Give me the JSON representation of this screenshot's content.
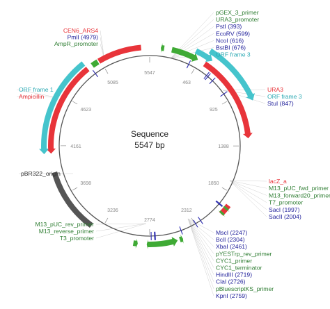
{
  "plasmid": {
    "name": "Sequence",
    "length_label": "5547 bp",
    "length": 5547
  },
  "ticks": [
    {
      "label": "5547",
      "pos": 0
    },
    {
      "label": "463",
      "pos": 463
    },
    {
      "label": "925",
      "pos": 925
    },
    {
      "label": "1388",
      "pos": 1388
    },
    {
      "label": "1850",
      "pos": 1850
    },
    {
      "label": "2312",
      "pos": 2312
    },
    {
      "label": "2774",
      "pos": 2774
    },
    {
      "label": "3236",
      "pos": 3236
    },
    {
      "label": "3698",
      "pos": 3698
    },
    {
      "label": "4161",
      "pos": 4161
    },
    {
      "label": "4623",
      "pos": 4623
    },
    {
      "label": "5085",
      "pos": 5085
    }
  ],
  "features": [
    {
      "name": "AmpR_promoter",
      "type": "promoter",
      "color": "#3faa35",
      "start": 5000,
      "end": 5060,
      "ring": 0,
      "arrow": "none"
    },
    {
      "name": "CEN6_ARS4",
      "type": "rep_origin",
      "color": "#e8343a",
      "start": 5070,
      "end": 5470,
      "ring": 0,
      "arrow": "none"
    },
    {
      "name": "URA3_promoter",
      "type": "promoter",
      "color": "#3faa35",
      "start": 200,
      "end": 450,
      "ring": 0,
      "arrow": "fwd"
    },
    {
      "name": "pGEX_3_primer",
      "type": "primer",
      "color": "#3faa35",
      "start": 100,
      "end": 130,
      "ring": 0,
      "arrow": "rev"
    },
    {
      "name": "URA3",
      "type": "gene",
      "color": "#e8343a",
      "start": 520,
      "end": 1320,
      "ring": 0,
      "arrow": "fwd"
    },
    {
      "name": "ORF frame 3",
      "type": "orf",
      "color": "#45c4cc",
      "start": 400,
      "end": 560,
      "ring": 1,
      "arrow": "fwd"
    },
    {
      "name": "ORF frame 3",
      "type": "orf",
      "color": "#45c4cc",
      "start": 500,
      "end": 1020,
      "ring": 2,
      "arrow": "fwd"
    },
    {
      "name": "lacZ_a",
      "type": "gene",
      "color": "#e8343a",
      "start": 1960,
      "end": 2060,
      "ring": 0,
      "arrow": "none"
    },
    {
      "name": "M13_pUC_fwd_primer",
      "type": "primer",
      "color": "#3faa35",
      "start": 1985,
      "end": 2005,
      "ring": 0,
      "arrow": "fwd"
    },
    {
      "name": "T7_promoter",
      "type": "promoter",
      "color": "#3faa35",
      "start": 2040,
      "end": 2060,
      "ring": 0,
      "arrow": "fwd"
    },
    {
      "name": "M13_pUC_rev_primer",
      "type": "primer",
      "color": "#3faa35",
      "start": 2880,
      "end": 2920,
      "ring": 0,
      "arrow": "rev"
    },
    {
      "name": "pYESTrp_rev_primer",
      "type": "primer",
      "color": "#3faa35",
      "start": 2470,
      "end": 2500,
      "ring": 0,
      "arrow": "rev"
    },
    {
      "name": "CYC1_terminator",
      "type": "terminator",
      "color": "#3faa35",
      "start": 2520,
      "end": 2780,
      "ring": 0,
      "arrow": "rev"
    },
    {
      "name": "pBluescriptKS_primer",
      "type": "primer",
      "color": "#3faa35",
      "start": 2770,
      "end": 2800,
      "ring": 0,
      "arrow": "fwd"
    },
    {
      "name": "pBR322_origin",
      "type": "rep_origin",
      "color": "#555555",
      "start": 3330,
      "end": 3920,
      "ring": 0,
      "arrow": "none"
    },
    {
      "name": "Ampicillin",
      "type": "gene",
      "color": "#e8343a",
      "start": 4090,
      "end": 4950,
      "ring": 0,
      "arrow": "rev"
    },
    {
      "name": "ORF frame 1",
      "type": "orf",
      "color": "#45c4cc",
      "start": 4090,
      "end": 4950,
      "ring": 1,
      "arrow": "rev"
    }
  ],
  "sites": [
    {
      "name": "PmlI",
      "pos": 4979
    },
    {
      "name": "PstI",
      "pos": 393
    },
    {
      "name": "EcoRV",
      "pos": 599
    },
    {
      "name": "NcoI",
      "pos": 616
    },
    {
      "name": "BstBI",
      "pos": 676
    },
    {
      "name": "StuI",
      "pos": 847
    },
    {
      "name": "SacI",
      "pos": 1997
    },
    {
      "name": "SacII",
      "pos": 2004
    },
    {
      "name": "MscI",
      "pos": 2247
    },
    {
      "name": "BclI",
      "pos": 2304
    },
    {
      "name": "XbaI",
      "pos": 2461
    },
    {
      "name": "HindIII",
      "pos": 2719
    },
    {
      "name": "ClaI",
      "pos": 2726
    },
    {
      "name": "KpnI",
      "pos": 2759
    }
  ],
  "labels": {
    "top_left": [
      {
        "text": "CEN6_ARS4",
        "color": "#e8343a"
      },
      {
        "text": "PmlI  (4979)",
        "color": "#1e1e9a"
      },
      {
        "text": "AmpR_promoter",
        "color": "#2e7d32"
      }
    ],
    "top_right": [
      {
        "text": "pGEX_3_primer",
        "color": "#2e7d32"
      },
      {
        "text": "URA3_promoter",
        "color": "#2e7d32"
      },
      {
        "text": "PstI  (393)",
        "color": "#1e1e9a"
      },
      {
        "text": "EcoRV  (599)",
        "color": "#1e1e9a"
      },
      {
        "text": "NcoI  (616)",
        "color": "#1e1e9a"
      },
      {
        "text": "BstBI  (676)",
        "color": "#1e1e9a"
      },
      {
        "text": "ORF frame 3",
        "color": "#2aa9b3"
      }
    ],
    "right_mid": [
      {
        "text": "URA3",
        "color": "#e8343a"
      },
      {
        "text": "ORF frame 3",
        "color": "#2aa9b3"
      },
      {
        "text": "StuI  (847)",
        "color": "#1e1e9a"
      }
    ],
    "left_mid": [
      {
        "text": "ORF frame 1",
        "color": "#2aa9b3"
      },
      {
        "text": "Ampicillin",
        "color": "#e8343a"
      }
    ],
    "left_origin": [
      {
        "text": "pBR322_origin",
        "color": "#333333"
      }
    ],
    "right_lower": [
      {
        "text": "lacZ_a",
        "color": "#e8343a"
      },
      {
        "text": "M13_pUC_fwd_primer",
        "color": "#2e7d32"
      },
      {
        "text": "M13_forward20_primer",
        "color": "#2e7d32"
      },
      {
        "text": "T7_promoter",
        "color": "#2e7d32"
      },
      {
        "text": "SacI  (1997)",
        "color": "#1e1e9a"
      },
      {
        "text": "SacII  (2004)",
        "color": "#1e1e9a"
      }
    ],
    "bottom_left": [
      {
        "text": "M13_pUC_rev_primer",
        "color": "#2e7d32"
      },
      {
        "text": "M13_reverse_primer",
        "color": "#2e7d32"
      },
      {
        "text": "T3_promoter",
        "color": "#2e7d32"
      }
    ],
    "bottom_right": [
      {
        "text": "MscI  (2247)",
        "color": "#1e1e9a"
      },
      {
        "text": "BclI  (2304)",
        "color": "#1e1e9a"
      },
      {
        "text": "XbaI  (2461)",
        "color": "#1e1e9a"
      },
      {
        "text": "pYESTrp_rev_primer",
        "color": "#2e7d32"
      },
      {
        "text": "CYC1_primer",
        "color": "#2e7d32"
      },
      {
        "text": "CYC1_terminator",
        "color": "#2e7d32"
      },
      {
        "text": "HindIII  (2719)",
        "color": "#1e1e9a"
      },
      {
        "text": "ClaI  (2726)",
        "color": "#1e1e9a"
      },
      {
        "text": "pBluescriptKS_primer",
        "color": "#2e7d32"
      },
      {
        "text": "KpnI  (2759)",
        "color": "#1e1e9a"
      }
    ]
  }
}
